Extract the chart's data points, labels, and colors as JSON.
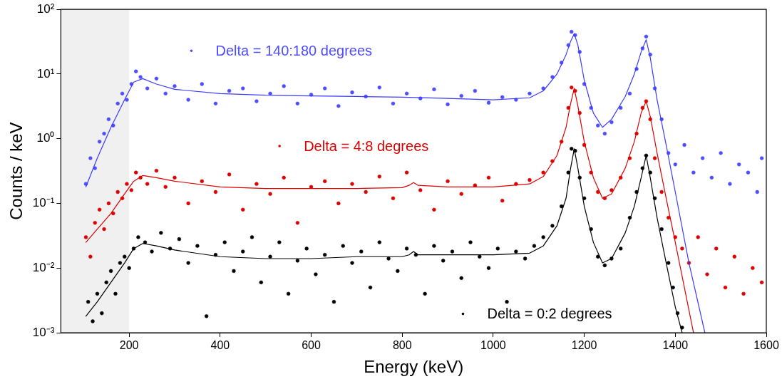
{
  "chart_data": {
    "type": "scatter",
    "xlabel": "Energy (keV)",
    "ylabel": "Counts / keV",
    "log": "y",
    "grid": false,
    "legend": false,
    "marker": "circle",
    "xlim": [
      50,
      1600
    ],
    "xticks": [
      200,
      400,
      600,
      800,
      1000,
      1200,
      1400,
      1600
    ],
    "ylim": [
      0.001,
      100
    ],
    "yticks": [
      {
        "value": 0.001,
        "label": "10⁻³"
      },
      {
        "value": 0.01,
        "label": "10⁻²"
      },
      {
        "value": 0.1,
        "label": "10⁻¹"
      },
      {
        "value": 1,
        "label": "10⁰"
      },
      {
        "value": 10,
        "label": "10¹"
      },
      {
        "value": 100,
        "label": "10²"
      }
    ],
    "bands": [
      {
        "axis": "x",
        "from": 50,
        "to": 200,
        "color": "#f0f0f0"
      }
    ],
    "series": [
      {
        "name": "Delta = 140:180 degrees",
        "type": "scatter",
        "color": "#4d4dff",
        "x": [
          105,
          115,
          125,
          135,
          145,
          155,
          165,
          175,
          185,
          195,
          205,
          215,
          225,
          240,
          260,
          280,
          300,
          330,
          360,
          390,
          420,
          450,
          480,
          510,
          540,
          570,
          600,
          630,
          660,
          690,
          720,
          750,
          780,
          810,
          840,
          870,
          900,
          930,
          960,
          990,
          1020,
          1050,
          1080,
          1110,
          1130,
          1150,
          1165,
          1172,
          1180,
          1190,
          1200,
          1215,
          1230,
          1245,
          1260,
          1280,
          1300,
          1315,
          1328,
          1336,
          1345,
          1355,
          1370,
          1385,
          1400,
          1420,
          1440,
          1460,
          1480,
          1500,
          1520,
          1540,
          1560,
          1580,
          1590
        ],
        "values": [
          0.2,
          0.5,
          0.35,
          0.9,
          1.2,
          2,
          1.6,
          3.5,
          5,
          4,
          7,
          11,
          9,
          6,
          8.5,
          5,
          6.5,
          4,
          7,
          3.5,
          5.5,
          6,
          3.8,
          5,
          6.5,
          3.5,
          4.8,
          6,
          3.2,
          5.2,
          4.5,
          6.2,
          3.5,
          5,
          4.2,
          5.8,
          3.4,
          4.6,
          5.5,
          3.6,
          4.4,
          4,
          5,
          6,
          9,
          15,
          28,
          45,
          40,
          22,
          7,
          3,
          1.6,
          1.2,
          1.8,
          3,
          5,
          12,
          25,
          38,
          20,
          6,
          2,
          0.6,
          0.4,
          0.8,
          0.3,
          0.5,
          0.25,
          0.6,
          0.2,
          0.4,
          0.3,
          0.15,
          0.5
        ]
      },
      {
        "name": "Delta = 4:8 degrees",
        "type": "scatter",
        "color": "#dd0000",
        "x": [
          105,
          115,
          125,
          135,
          145,
          155,
          165,
          175,
          185,
          195,
          205,
          215,
          225,
          240,
          260,
          280,
          300,
          330,
          360,
          390,
          420,
          450,
          480,
          510,
          540,
          570,
          600,
          630,
          660,
          690,
          720,
          750,
          780,
          810,
          840,
          870,
          900,
          930,
          960,
          990,
          1020,
          1050,
          1080,
          1110,
          1130,
          1150,
          1165,
          1172,
          1180,
          1190,
          1200,
          1215,
          1230,
          1245,
          1260,
          1280,
          1300,
          1315,
          1328,
          1336,
          1345,
          1355,
          1370,
          1385,
          1400,
          1415,
          1430,
          1450,
          1470,
          1490,
          1510,
          1530,
          1550,
          1570,
          1590
        ],
        "values": [
          0.03,
          0.015,
          0.05,
          0.08,
          0.04,
          0.1,
          0.07,
          0.15,
          0.12,
          0.2,
          0.16,
          0.3,
          0.25,
          0.2,
          0.32,
          0.18,
          0.25,
          0.1,
          0.22,
          0.15,
          0.28,
          0.08,
          0.2,
          0.14,
          0.25,
          0.05,
          0.18,
          0.22,
          0.1,
          0.2,
          0.15,
          0.26,
          0.12,
          0.3,
          0.16,
          0.08,
          0.22,
          0.14,
          0.19,
          0.25,
          0.11,
          0.2,
          0.23,
          0.3,
          0.45,
          0.9,
          3,
          6.2,
          5.5,
          2.5,
          0.8,
          0.3,
          0.15,
          0.12,
          0.16,
          0.25,
          0.5,
          1.2,
          3,
          3.8,
          2,
          0.5,
          0.15,
          0.06,
          0.03,
          0.02,
          0.012,
          0.03,
          0.008,
          0.02,
          0.005,
          0.015,
          0.004,
          0.01,
          0.006
        ]
      },
      {
        "name": "Delta = 0:2 degrees",
        "type": "scatter",
        "color": "#000000",
        "x": [
          110,
          120,
          130,
          140,
          150,
          160,
          170,
          180,
          190,
          200,
          210,
          220,
          235,
          250,
          270,
          290,
          310,
          330,
          350,
          370,
          390,
          410,
          430,
          450,
          470,
          490,
          510,
          530,
          550,
          570,
          590,
          610,
          630,
          650,
          670,
          690,
          710,
          730,
          750,
          770,
          790,
          810,
          830,
          850,
          870,
          890,
          910,
          930,
          950,
          970,
          990,
          1010,
          1030,
          1050,
          1070,
          1090,
          1110,
          1130,
          1150,
          1165,
          1172,
          1180,
          1190,
          1200,
          1215,
          1230,
          1245,
          1260,
          1280,
          1300,
          1315,
          1328,
          1336,
          1345,
          1355,
          1370,
          1385,
          1395,
          1405,
          1415
        ],
        "values": [
          0.003,
          0.0015,
          0.004,
          0.002,
          0.006,
          0.009,
          0.004,
          0.012,
          0.015,
          0.01,
          0.02,
          0.03,
          0.025,
          0.018,
          0.035,
          0.02,
          0.028,
          0.012,
          0.022,
          0.0018,
          0.016,
          0.025,
          0.009,
          0.018,
          0.03,
          0.006,
          0.015,
          0.025,
          0.004,
          0.013,
          0.02,
          0.008,
          0.016,
          0.003,
          0.022,
          0.012,
          0.018,
          0.005,
          0.025,
          0.014,
          0.009,
          0.02,
          0.016,
          0.004,
          0.022,
          0.013,
          0.018,
          0.007,
          0.025,
          0.015,
          0.01,
          0.02,
          0.003,
          0.018,
          0.014,
          0.022,
          0.03,
          0.045,
          0.09,
          0.3,
          0.7,
          0.65,
          0.25,
          0.12,
          0.04,
          0.015,
          0.011,
          0.014,
          0.02,
          0.06,
          0.15,
          0.35,
          0.55,
          0.3,
          0.12,
          0.04,
          0.012,
          0.005,
          0.002,
          0.0012
        ]
      },
      {
        "type": "line",
        "marker": "none",
        "color": "#3a3aff",
        "x": [
          105,
          130,
          160,
          190,
          210,
          230,
          260,
          300,
          400,
          500,
          600,
          700,
          800,
          900,
          1000,
          1080,
          1110,
          1140,
          1160,
          1170,
          1178,
          1186,
          1200,
          1220,
          1240,
          1260,
          1290,
          1310,
          1325,
          1336,
          1345,
          1360,
          1380,
          1400,
          1430,
          1465
        ],
        "values": [
          0.18,
          0.5,
          1.5,
          4,
          7.5,
          8.5,
          7,
          5.8,
          5,
          4.7,
          4.6,
          4.5,
          4.4,
          4.2,
          4,
          4.3,
          5.5,
          10,
          20,
          32,
          42,
          28,
          8,
          2.5,
          1.5,
          2,
          4.5,
          10,
          22,
          34,
          18,
          4,
          0.8,
          0.15,
          0.012,
          0.001
        ]
      },
      {
        "type": "line",
        "marker": "none",
        "color": "#dd0000",
        "x": [
          105,
          130,
          160,
          190,
          210,
          230,
          260,
          300,
          400,
          500,
          600,
          700,
          800,
          815,
          825,
          835,
          900,
          1000,
          1080,
          1110,
          1140,
          1160,
          1170,
          1178,
          1186,
          1200,
          1220,
          1240,
          1260,
          1290,
          1310,
          1325,
          1336,
          1345,
          1360,
          1380,
          1400,
          1420,
          1440
        ],
        "values": [
          0.025,
          0.04,
          0.07,
          0.14,
          0.22,
          0.27,
          0.25,
          0.22,
          0.18,
          0.17,
          0.17,
          0.17,
          0.175,
          0.19,
          0.21,
          0.19,
          0.18,
          0.18,
          0.2,
          0.26,
          0.55,
          1.5,
          3.5,
          6,
          3.2,
          0.9,
          0.25,
          0.12,
          0.14,
          0.35,
          0.9,
          2.5,
          3.8,
          2.2,
          0.6,
          0.12,
          0.025,
          0.005,
          0.001
        ]
      },
      {
        "type": "line",
        "marker": "none",
        "color": "#000000",
        "x": [
          105,
          130,
          160,
          190,
          210,
          230,
          260,
          300,
          400,
          500,
          600,
          700,
          800,
          815,
          825,
          835,
          900,
          1000,
          1080,
          1110,
          1140,
          1160,
          1170,
          1178,
          1186,
          1200,
          1220,
          1240,
          1260,
          1290,
          1310,
          1325,
          1336,
          1345,
          1360,
          1380,
          1400,
          1415
        ],
        "values": [
          0.0018,
          0.003,
          0.006,
          0.012,
          0.02,
          0.024,
          0.022,
          0.019,
          0.015,
          0.014,
          0.014,
          0.015,
          0.015,
          0.016,
          0.018,
          0.016,
          0.016,
          0.016,
          0.017,
          0.022,
          0.045,
          0.12,
          0.35,
          0.7,
          0.35,
          0.09,
          0.025,
          0.012,
          0.014,
          0.035,
          0.09,
          0.25,
          0.55,
          0.25,
          0.06,
          0.012,
          0.0025,
          0.001
        ]
      }
    ]
  }
}
